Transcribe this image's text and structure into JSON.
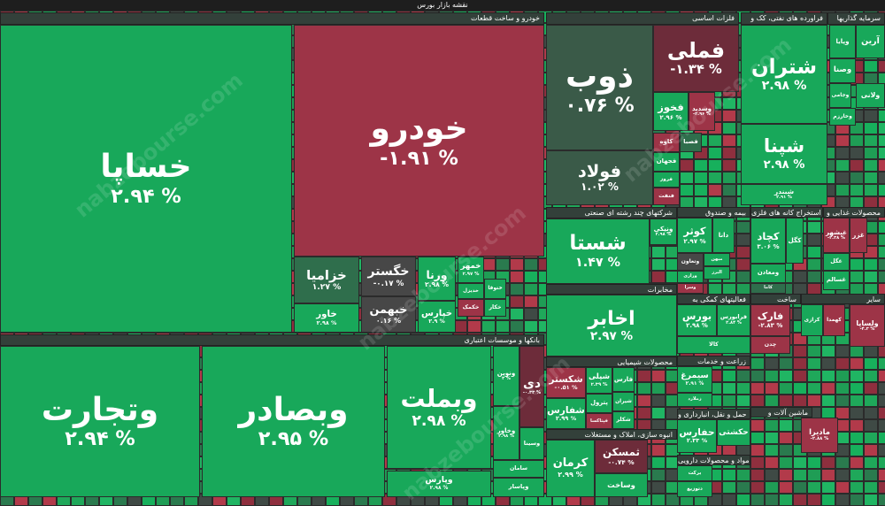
{
  "title": "نقشه بازار بورس",
  "watermark": "nabzebourse.com",
  "sectors": [
    {
      "name": "خودرو و ساخت قطعات",
      "tiles": [
        {
          "name": "خساپا",
          "change": "۲.۹۴ %"
        },
        {
          "name": "خودرو",
          "change": "-۱.۹۱ %"
        },
        {
          "name": "خزامیا",
          "change": "۱.۲۷ %"
        },
        {
          "name": "خاور",
          "change": "۲.۹۸ %"
        },
        {
          "name": "خگستر",
          "change": "-۰.۱۷ %"
        },
        {
          "name": "خبهمن",
          "change": "۰.۱۶ %"
        },
        {
          "name": "ورنا",
          "change": "۲.۹۸ %"
        },
        {
          "name": "خپارس",
          "change": "۲.۹ %"
        },
        {
          "name": "خمهر",
          "change": "۲.۹۷ %"
        },
        {
          "name": "خدیزل"
        },
        {
          "name": "خکمک"
        },
        {
          "name": "خکار"
        },
        {
          "name": "ختوقا"
        }
      ]
    },
    {
      "name": "بانکها و موسسات اعتباری",
      "tiles": [
        {
          "name": "وتجارت",
          "change": "۲.۹۴ %"
        },
        {
          "name": "وبصادر",
          "change": "۲.۹۵ %"
        },
        {
          "name": "وبملت",
          "change": "۲.۹۸ %"
        },
        {
          "name": "وپارس",
          "change": "۲.۹۸ %"
        },
        {
          "name": "ونوین",
          "change": "۳ %"
        },
        {
          "name": "دی",
          "change": "-۰.۳۳ %"
        },
        {
          "name": "وخاور",
          "change": "۲.۹۸ %"
        },
        {
          "name": "وسینا"
        },
        {
          "name": "سامان"
        },
        {
          "name": "وپاسار"
        }
      ]
    },
    {
      "name": "فلزات اساسی",
      "tiles": [
        {
          "name": "ذوب",
          "change": "۰.۷۶ %"
        },
        {
          "name": "فملی",
          "change": "-۱.۳۴ %"
        },
        {
          "name": "فخوز",
          "change": "۲.۹۶ %"
        },
        {
          "name": "وسدید",
          "change": "-۲.۹۶ %"
        },
        {
          "name": "فولاد",
          "change": "۱.۰۲ %"
        },
        {
          "name": "کاوه"
        },
        {
          "name": "فجهان"
        },
        {
          "name": "فروز"
        },
        {
          "name": "فنفت"
        },
        {
          "name": "فصبا"
        }
      ]
    },
    {
      "name": "فراورده های نفتی، کک و",
      "tiles": [
        {
          "name": "شتران",
          "change": "۲.۹۸ %"
        },
        {
          "name": "شپنا",
          "change": "۲.۹۸ %"
        },
        {
          "name": "شبندر",
          "change": "۲.۹۱ %"
        }
      ]
    },
    {
      "name": "سرمایه گذاریها",
      "tiles": [
        {
          "name": "وپایا"
        },
        {
          "name": "آرین"
        },
        {
          "name": "وصنا"
        },
        {
          "name": "وجامی"
        },
        {
          "name": "ولانی"
        },
        {
          "name": "وخارزم"
        }
      ]
    },
    {
      "name": "شرکتهای چند رشته ای صنعتی",
      "tiles": [
        {
          "name": "شستا",
          "change": "۱.۴۷ %"
        },
        {
          "name": "ونیکی",
          "change": "۲.۹۸ %"
        }
      ]
    },
    {
      "name": "مخابرات",
      "tiles": [
        {
          "name": "اخابر",
          "change": "۲.۹۷ %"
        }
      ]
    },
    {
      "name": "محصولات شیمیایی",
      "tiles": [
        {
          "name": "شکستر",
          "change": "-۰.۵۱ %"
        },
        {
          "name": "شپلی",
          "change": "۲.۳۹ %"
        },
        {
          "name": "فارس"
        },
        {
          "name": "شیران"
        },
        {
          "name": "پترول"
        },
        {
          "name": "شفارس",
          "change": "۲.۹۹ %"
        },
        {
          "name": "شکلر"
        },
        {
          "name": "فپتاکسا"
        }
      ]
    },
    {
      "name": "انبوه سازی، املاک و مستغلات",
      "tiles": [
        {
          "name": "کرمان",
          "change": "۲.۹۹ %"
        },
        {
          "name": "ثمسکن",
          "change": "-۰.۷۴ %"
        },
        {
          "name": "وساخت"
        }
      ]
    },
    {
      "name": "بیمه و صندوق",
      "tiles": [
        {
          "name": "کوثر",
          "change": "۲.۹۷ %"
        },
        {
          "name": "دانا"
        },
        {
          "name": "وتعاون"
        },
        {
          "name": "میهن"
        },
        {
          "name": "ورازی"
        },
        {
          "name": "البرز"
        },
        {
          "name": "وسرا"
        }
      ]
    },
    {
      "name": "فعالیتهای کمکی به",
      "tiles": [
        {
          "name": "بورس",
          "change": "۲.۹۸ %"
        },
        {
          "name": "فرابورس",
          "change": "۲.۸۴ %"
        },
        {
          "name": "کالا"
        }
      ]
    },
    {
      "name": "زراعت و خدمات",
      "tiles": [
        {
          "name": "سیمرغ",
          "change": "۲.۹۱ %"
        },
        {
          "name": "زملارد"
        }
      ]
    },
    {
      "name": "حمل و نقل، انبارداری و",
      "tiles": [
        {
          "name": "حفارس",
          "change": "۲.۳۳ %"
        },
        {
          "name": "حکشتی"
        }
      ]
    },
    {
      "name": "مواد و محصولات دارویی",
      "tiles": [
        {
          "name": "برکت"
        },
        {
          "name": "دتوزیع"
        }
      ]
    },
    {
      "name": "استخراج کانه های فلزی",
      "tiles": [
        {
          "name": "کچاد",
          "change": "۳.۰۶ %"
        },
        {
          "name": "کگل"
        },
        {
          "name": "ومعادن"
        },
        {
          "name": "کاما"
        }
      ]
    },
    {
      "name": "محصولات غذایی و",
      "tiles": [
        {
          "name": "غبشهر",
          "change": "-۲.۳۸ %"
        },
        {
          "name": "غزر"
        },
        {
          "name": "غگل"
        },
        {
          "name": "غسالم"
        }
      ]
    },
    {
      "name": "ساخت",
      "tiles": [
        {
          "name": "فارک",
          "change": "-۲.۸۳ %"
        },
        {
          "name": "چدن"
        }
      ]
    },
    {
      "name": "سایر",
      "tiles": [
        {
          "name": "کرازی"
        },
        {
          "name": "کهمدا"
        },
        {
          "name": "ولساپا",
          "change": "-۴.۳ %"
        }
      ]
    },
    {
      "name": "ماشین آلات و",
      "tiles": [
        {
          "name": "مادیرا",
          "change": "-۲.۸۸ %"
        }
      ]
    }
  ]
}
